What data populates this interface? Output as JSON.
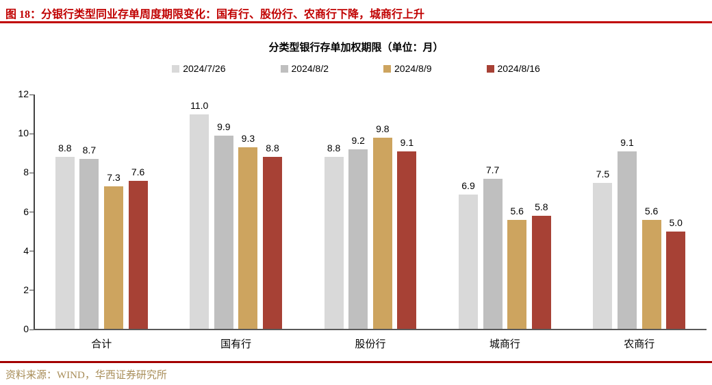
{
  "header": {
    "title": "图 18：分银行类型同业存单周度期限变化：国有行、股份行、农商行下降，城商行上升"
  },
  "footer": {
    "source": "资料来源：WIND，华西证券研究所"
  },
  "colors": {
    "title_red": "#c00000",
    "top_rule": "#c00000",
    "bottom_rule": "#a30000",
    "source_gold": "#a88d58",
    "axis": "#404040"
  },
  "chart_data": {
    "type": "bar",
    "title": "分类型银行存单加权期限（单位：月）",
    "categories": [
      "合计",
      "国有行",
      "股份行",
      "城商行",
      "农商行"
    ],
    "series": [
      {
        "name": "2024/7/26",
        "color": "#d9d9d9",
        "values": [
          8.8,
          11.0,
          8.8,
          6.9,
          7.5
        ]
      },
      {
        "name": "2024/8/2",
        "color": "#bfbfbf",
        "values": [
          8.7,
          9.9,
          9.2,
          7.7,
          9.1
        ]
      },
      {
        "name": "2024/8/9",
        "color": "#cda45f",
        "values": [
          7.3,
          9.3,
          9.8,
          5.6,
          5.6
        ]
      },
      {
        "name": "2024/8/16",
        "color": "#a74135",
        "values": [
          7.6,
          8.8,
          9.1,
          5.8,
          5.0
        ]
      }
    ],
    "ylim": [
      0,
      12
    ],
    "yticks": [
      0,
      2,
      4,
      6,
      8,
      10,
      12
    ],
    "grid": false,
    "legend_position": "top",
    "value_labels": true,
    "value_label_decimals": 1
  }
}
